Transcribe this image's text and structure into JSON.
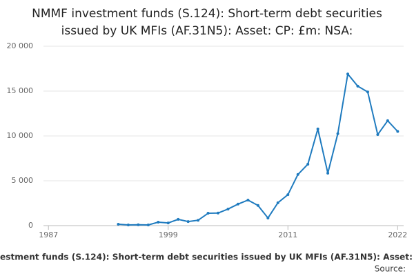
{
  "chart_data": {
    "type": "line",
    "title": [
      "NMMF investment funds (S.124): Short-term debt securities",
      "issued by UK MFIs (AF.31N5): Asset: CP: £m: NSA:"
    ],
    "footer": "estment funds (S.124): Short-term debt securities issued by UK MFIs (AF.31N5): Asset:",
    "source": "Source:",
    "x": [
      1994,
      1995,
      1996,
      1997,
      1998,
      1999,
      2000,
      2001,
      2002,
      2003,
      2004,
      2005,
      2006,
      2007,
      2008,
      2009,
      2010,
      2011,
      2012,
      2013,
      2014,
      2015,
      2016,
      2017,
      2018,
      2019,
      2020,
      2021,
      2022
    ],
    "series": [
      {
        "color": "#1f7bbf",
        "values": [
          150,
          80,
          100,
          80,
          380,
          300,
          700,
          450,
          600,
          1380,
          1400,
          1850,
          2400,
          2850,
          2250,
          850,
          2550,
          3450,
          5700,
          6850,
          10780,
          5850,
          10250,
          16900,
          15550,
          14900,
          10150,
          11700,
          10500
        ]
      }
    ],
    "xlim": [
      1986.5,
      2022.6
    ],
    "xticks": [
      1987,
      1999,
      2011,
      2022
    ],
    "ylim": [
      0,
      20000
    ],
    "yticks": [
      0,
      {
        "value": 5000,
        "label": "5 000"
      },
      {
        "value": 10000,
        "label": "10 000"
      },
      {
        "value": 15000,
        "label": "15 000"
      },
      {
        "value": 20000,
        "label": "20 000"
      }
    ],
    "grid": true
  }
}
